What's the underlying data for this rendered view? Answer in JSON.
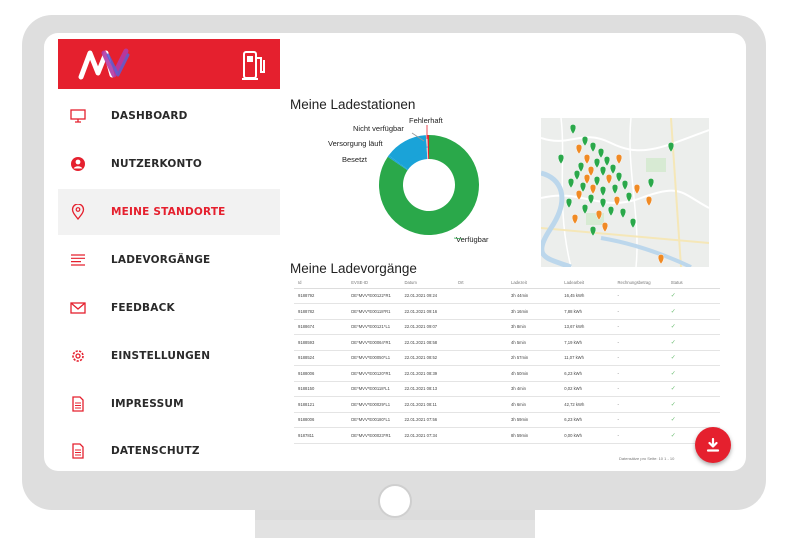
{
  "nav": {
    "items": [
      {
        "label": "DASHBOARD",
        "icon": "monitor-icon",
        "active": false
      },
      {
        "label": "NUTZERKONTO",
        "icon": "user-icon",
        "active": false
      },
      {
        "label": "MEINE STANDORTE",
        "icon": "map-pin-icon",
        "active": true
      },
      {
        "label": "LADEVORGÄNGE",
        "icon": "list-icon",
        "active": false
      },
      {
        "label": "FEEDBACK",
        "icon": "mail-icon",
        "active": false
      },
      {
        "label": "EINSTELLUNGEN",
        "icon": "gear-icon",
        "active": false
      },
      {
        "label": "IMPRESSUM",
        "icon": "document-icon",
        "active": false
      },
      {
        "label": "DATENSCHUTZ",
        "icon": "document-icon",
        "active": false
      }
    ]
  },
  "stations": {
    "title": "Meine Ladestationen",
    "chart_data": {
      "type": "pie",
      "donut": true,
      "labels": [
        "Verfügbar",
        "Besetzt",
        "Versorgung läuft",
        "Nicht verfügbar",
        "Fehlerhaft"
      ],
      "values": [
        85,
        0.5,
        14,
        0.5,
        0.5
      ],
      "colors": [
        "#2aa84a",
        "#1aa3d8",
        "#1aa3d8",
        "#d6d6d6",
        "#e5202e"
      ]
    }
  },
  "sessions": {
    "title": "Meine Ladevorgänge",
    "columns": [
      "Id",
      "EVSE-ID",
      "Datum",
      "Ort",
      "Ladezeit",
      "Ladearbeit",
      "Rechnungsbetrag",
      "Status"
    ],
    "rows": [
      [
        "9188792",
        "DE*MVV*E00122*R1",
        "22.01.2021 09:24",
        "",
        "3h 44min",
        "16,45 kWh",
        "-",
        "✓"
      ],
      [
        "9188782",
        "DE*MVV*E00118*R1",
        "22.01.2021 09:16",
        "",
        "3h 16min",
        "7,88 kWh",
        "-",
        "✓"
      ],
      [
        "9188674",
        "DE*MVV*E00121*L1",
        "22.01.2021 09:07",
        "",
        "3h 8min",
        "13,67 kWh",
        "-",
        "✓"
      ],
      [
        "9188593",
        "DE*MVV*E00064*R1",
        "22.01.2021 08:58",
        "",
        "4h 5min",
        "7,19 kWh",
        "-",
        "✓"
      ],
      [
        "9188524",
        "DE*MVV*E00050*L1",
        "22.01.2021 08:52",
        "",
        "2h 57min",
        "11,07 kWh",
        "-",
        "✓"
      ],
      [
        "9188006",
        "DE*MVV*E00120*R1",
        "22.01.2021 08:39",
        "",
        "4h 50min",
        "6,23 kWh",
        "-",
        "✓"
      ],
      [
        "9188150",
        "DE*MVV*E00118*L1",
        "22.01.2021 08:13",
        "",
        "3h 4min",
        "0,02 kWh",
        "-",
        "✓"
      ],
      [
        "9188121",
        "DE*MVV*E00029*L1",
        "22.01.2021 08:11",
        "",
        "4h 6min",
        "42,72 kWh",
        "-",
        "✓"
      ],
      [
        "9188006",
        "DE*MVV*E00180*L1",
        "22.01.2021 07:56",
        "",
        "3h 59min",
        "6,23 kWh",
        "-",
        "✓"
      ],
      [
        "9187811",
        "DE*MVV*E00023*R1",
        "22.01.2021 07:34",
        "",
        "8h 59min",
        "0,00 kWh",
        "-",
        "✓"
      ]
    ],
    "pager": "Datensätze pro Seite: 10     1 - 10"
  },
  "fab": {
    "icon": "download-icon"
  },
  "colors": {
    "brand_red": "#e5202e",
    "green": "#2aa84a",
    "blue": "#1aa3d8",
    "orange": "#f08a24"
  }
}
